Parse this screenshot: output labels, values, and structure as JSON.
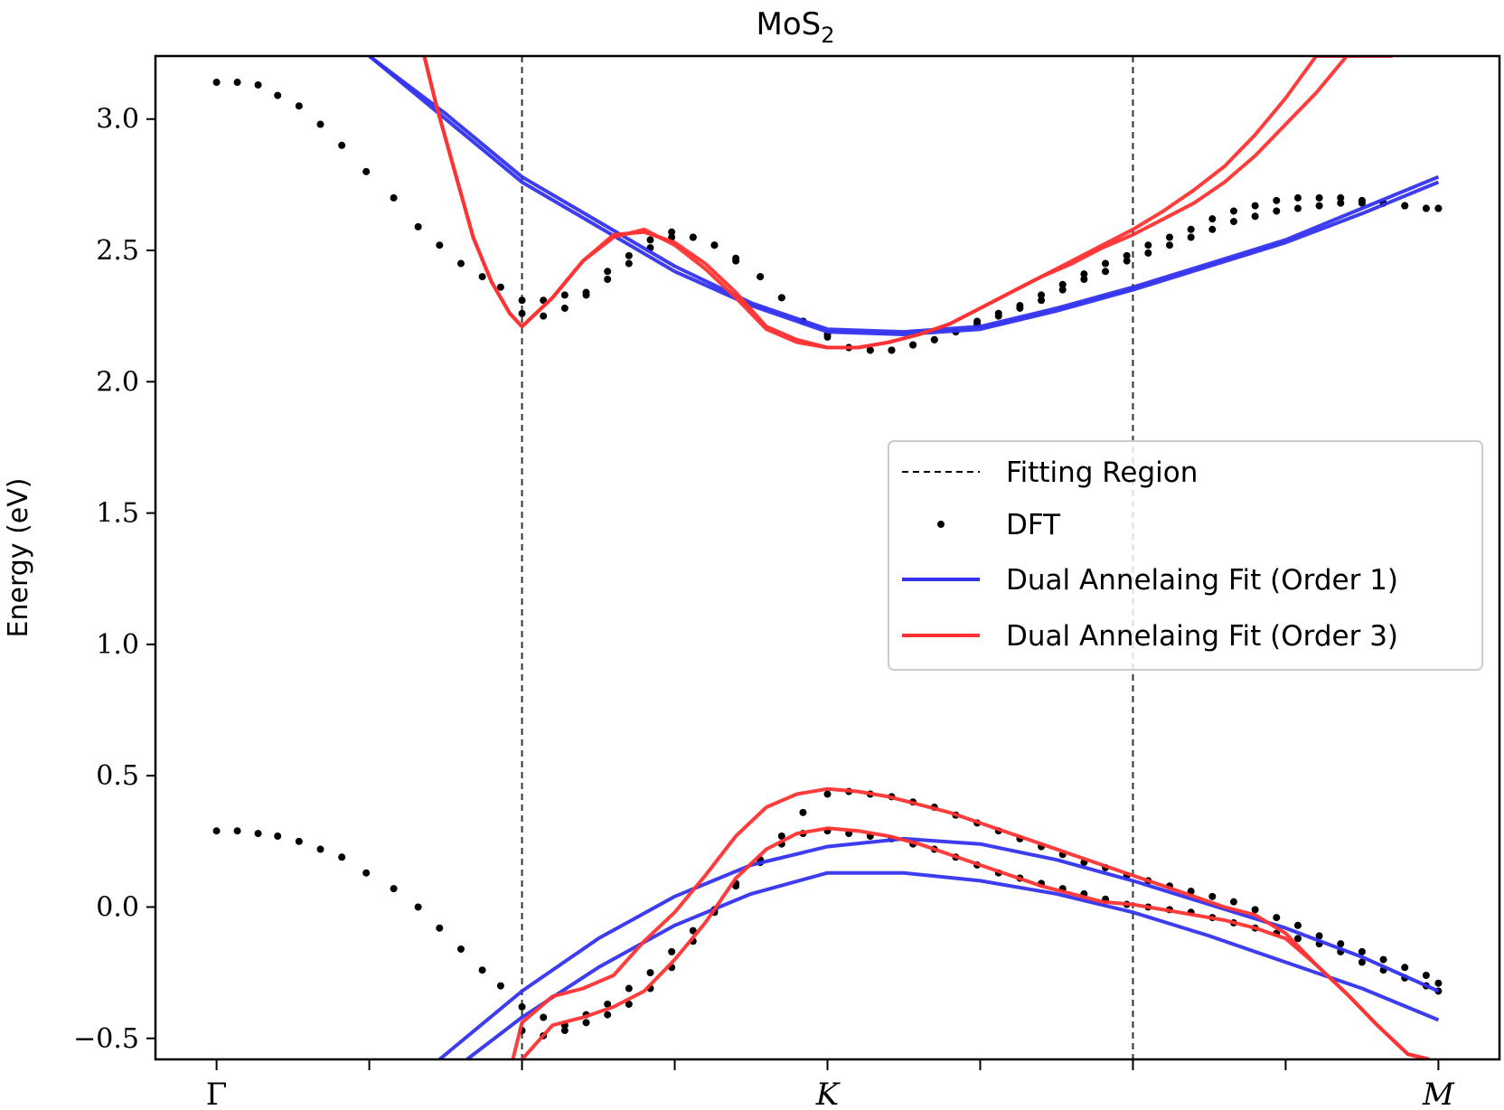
{
  "chart_data": {
    "type": "line",
    "title": "MoS",
    "title_subscript": "2",
    "xlabel": "",
    "ylabel": "Energy (eV)",
    "ylim": [
      -0.58,
      3.24
    ],
    "y_ticks": [
      -0.5,
      0.0,
      0.5,
      1.0,
      1.5,
      2.0,
      2.5,
      3.0
    ],
    "y_tick_labels": [
      "−0.5",
      "0.0",
      "0.5",
      "1.0",
      "1.5",
      "2.0",
      "2.5",
      "3.0"
    ],
    "x_ticks": [
      {
        "pos": 0.0,
        "label": "Γ",
        "italic": false
      },
      {
        "pos": 0.5,
        "label": "",
        "italic": false
      },
      {
        "pos": 1.0,
        "label": "",
        "italic": false
      },
      {
        "pos": 1.5,
        "label": "",
        "italic": false
      },
      {
        "pos": 2.0,
        "label": "K",
        "italic": true
      },
      {
        "pos": 2.5,
        "label": "",
        "italic": false
      },
      {
        "pos": 3.0,
        "label": "",
        "italic": false
      },
      {
        "pos": 3.5,
        "label": "",
        "italic": false
      },
      {
        "pos": 4.0,
        "label": "M",
        "italic": true
      }
    ],
    "xlim": [
      -0.2,
      4.2
    ],
    "fitting_region": [
      1.0,
      3.0
    ],
    "legend": {
      "placement": "center-right",
      "entries": [
        {
          "label": "Fitting Region",
          "style": "dashed",
          "color": "#000000"
        },
        {
          "label": "DFT",
          "style": "dot",
          "color": "#000000"
        },
        {
          "label": "Dual Annelaing Fit (Order 1)",
          "style": "line",
          "color": "#3333ee"
        },
        {
          "label": "Dual Annelaing Fit (Order 3)",
          "style": "line",
          "color": "#ff3333"
        }
      ]
    },
    "colors": {
      "dft": "#000000",
      "order1": "#3333ee",
      "order3": "#ff3333",
      "fitting": "#333333"
    },
    "series": [
      {
        "name": "DFT",
        "kind": "dots",
        "x": [
          0.0,
          0.068,
          0.136,
          0.2,
          0.27,
          0.34,
          0.41,
          0.49,
          0.58,
          0.66,
          0.73,
          0.8,
          0.87,
          0.93,
          1.0,
          1.07,
          1.14,
          1.21,
          1.28,
          1.35,
          1.42,
          1.49,
          1.56,
          1.63,
          1.7,
          1.78,
          1.85,
          1.92,
          2.0,
          2.07,
          2.14,
          2.21,
          2.28,
          2.35,
          2.42,
          2.49,
          2.56,
          2.63,
          2.7,
          2.77,
          2.84,
          2.91,
          2.98,
          3.05,
          3.12,
          3.19,
          3.26,
          3.33,
          3.4,
          3.47,
          3.54,
          3.61,
          3.68,
          3.75,
          3.82,
          3.89,
          3.96,
          4.0
        ],
        "y": [
          3.14,
          3.14,
          3.13,
          3.09,
          3.05,
          2.98,
          2.9,
          2.8,
          2.7,
          2.59,
          2.52,
          2.45,
          2.4,
          2.36,
          2.31,
          2.31,
          2.33,
          2.34,
          2.42,
          2.48,
          2.54,
          2.57,
          2.55,
          2.52,
          2.46,
          2.4,
          2.32,
          2.23,
          2.18,
          2.13,
          2.12,
          2.12,
          2.14,
          2.16,
          2.19,
          2.23,
          2.26,
          2.29,
          2.33,
          2.37,
          2.41,
          2.45,
          2.48,
          2.52,
          2.55,
          2.58,
          2.62,
          2.65,
          2.67,
          2.69,
          2.7,
          2.7,
          2.7,
          2.69,
          2.68,
          2.67,
          2.66,
          2.66
        ]
      },
      {
        "name": "DFT",
        "kind": "dots",
        "x": [
          1.0,
          1.07,
          1.14,
          1.21,
          1.28,
          1.35,
          1.42,
          1.49,
          1.56,
          1.63,
          1.7,
          1.78,
          1.85,
          1.92,
          2.0,
          2.07,
          2.14,
          2.21,
          2.28,
          2.35,
          2.42,
          2.49,
          2.56,
          2.63,
          2.7,
          2.77,
          2.84,
          2.91,
          2.98,
          3.05,
          3.12,
          3.19,
          3.26,
          3.33,
          3.4,
          3.47,
          3.54,
          3.61,
          3.68,
          3.75,
          3.82,
          3.89,
          3.96,
          4.0
        ],
        "y": [
          2.26,
          2.25,
          2.28,
          2.33,
          2.39,
          2.45,
          2.51,
          2.55,
          2.55,
          2.52,
          2.47,
          2.4,
          2.32,
          2.23,
          2.17,
          2.13,
          2.12,
          2.12,
          2.14,
          2.16,
          2.19,
          2.22,
          2.25,
          2.28,
          2.31,
          2.35,
          2.39,
          2.42,
          2.46,
          2.49,
          2.52,
          2.55,
          2.58,
          2.61,
          2.63,
          2.65,
          2.66,
          2.67,
          2.68,
          2.68,
          2.68,
          2.67,
          2.66,
          2.66
        ]
      },
      {
        "name": "DFT",
        "kind": "dots",
        "x": [
          0.0,
          0.068,
          0.136,
          0.2,
          0.27,
          0.34,
          0.41,
          0.49,
          0.58,
          0.66,
          0.73,
          0.8,
          0.87,
          0.93,
          1.0,
          1.07,
          1.14,
          1.21,
          1.28,
          1.35,
          1.42,
          1.49,
          1.56,
          1.63,
          1.7,
          1.78,
          1.85,
          1.92,
          2.0,
          2.07,
          2.14,
          2.21,
          2.28,
          2.35,
          2.42,
          2.49,
          2.56,
          2.63,
          2.7,
          2.77,
          2.84,
          2.91,
          2.98,
          3.05,
          3.12,
          3.19,
          3.26,
          3.33,
          3.4,
          3.47,
          3.54,
          3.61,
          3.68,
          3.75,
          3.82,
          3.89,
          3.96,
          4.0
        ],
        "y": [
          0.29,
          0.29,
          0.28,
          0.27,
          0.25,
          0.22,
          0.19,
          0.13,
          0.07,
          0.0,
          -0.08,
          -0.16,
          -0.24,
          -0.3,
          -0.38,
          -0.42,
          -0.45,
          -0.41,
          -0.37,
          -0.31,
          -0.25,
          -0.17,
          -0.09,
          -0.01,
          0.08,
          0.17,
          0.27,
          0.36,
          0.43,
          0.44,
          0.43,
          0.42,
          0.4,
          0.38,
          0.35,
          0.32,
          0.29,
          0.26,
          0.23,
          0.2,
          0.17,
          0.15,
          0.12,
          0.1,
          0.08,
          0.06,
          0.04,
          0.02,
          -0.01,
          -0.04,
          -0.07,
          -0.11,
          -0.14,
          -0.17,
          -0.2,
          -0.23,
          -0.26,
          -0.29
        ]
      },
      {
        "name": "DFT",
        "kind": "dots",
        "x": [
          1.0,
          1.07,
          1.14,
          1.21,
          1.28,
          1.35,
          1.42,
          1.49,
          1.56,
          1.63,
          1.7,
          1.78,
          1.85,
          1.92,
          2.0,
          2.07,
          2.14,
          2.21,
          2.28,
          2.35,
          2.42,
          2.49,
          2.56,
          2.63,
          2.7,
          2.77,
          2.84,
          2.91,
          2.98,
          3.05,
          3.12,
          3.19,
          3.26,
          3.33,
          3.4,
          3.47,
          3.54,
          3.61,
          3.68,
          3.75,
          3.82,
          3.89,
          3.96,
          4.0
        ],
        "y": [
          -0.47,
          -0.49,
          -0.47,
          -0.44,
          -0.41,
          -0.37,
          -0.31,
          -0.23,
          -0.13,
          -0.02,
          0.09,
          0.18,
          0.24,
          0.28,
          0.29,
          0.28,
          0.27,
          0.26,
          0.24,
          0.22,
          0.19,
          0.16,
          0.13,
          0.11,
          0.09,
          0.07,
          0.05,
          0.03,
          0.01,
          0.0,
          -0.01,
          -0.02,
          -0.04,
          -0.06,
          -0.08,
          -0.1,
          -0.12,
          -0.14,
          -0.17,
          -0.21,
          -0.24,
          -0.27,
          -0.3,
          -0.32
        ]
      },
      {
        "name": "Dual Annelaing Fit (Order 1)",
        "kind": "line",
        "x": [
          0.5,
          0.75,
          1.0,
          1.25,
          1.5,
          1.75,
          2.0,
          2.25,
          2.5,
          2.75,
          3.0,
          3.25,
          3.5,
          3.75,
          4.0
        ],
        "y": [
          3.24,
          3.02,
          2.78,
          2.61,
          2.44,
          2.3,
          2.2,
          2.19,
          2.21,
          2.28,
          2.36,
          2.45,
          2.54,
          2.66,
          2.78
        ]
      },
      {
        "name": "Dual Annelaing Fit (Order 1)",
        "kind": "line",
        "x": [
          0.5,
          0.75,
          1.0,
          1.25,
          1.5,
          1.75,
          2.0,
          2.25,
          2.5,
          2.75,
          3.0,
          3.25,
          3.5,
          3.75,
          4.0
        ],
        "y": [
          3.24,
          3.0,
          2.76,
          2.59,
          2.42,
          2.29,
          2.19,
          2.18,
          2.2,
          2.27,
          2.35,
          2.44,
          2.53,
          2.64,
          2.76
        ]
      },
      {
        "name": "Dual Annelaing Fit (Order 3)",
        "kind": "line",
        "x": [
          0.68,
          0.72,
          0.78,
          0.84,
          0.9,
          0.96,
          1.0,
          1.1,
          1.2,
          1.3,
          1.4,
          1.5,
          1.6,
          1.7,
          1.8,
          1.9,
          2.0,
          2.1,
          2.2,
          2.3,
          2.4,
          2.5,
          2.6,
          2.7,
          2.8,
          2.9,
          3.0,
          3.1,
          3.2,
          3.3,
          3.4,
          3.5,
          3.6,
          3.7,
          3.8,
          3.85
        ],
        "y": [
          3.24,
          3.05,
          2.8,
          2.55,
          2.38,
          2.26,
          2.21,
          2.32,
          2.46,
          2.56,
          2.57,
          2.53,
          2.45,
          2.34,
          2.21,
          2.16,
          2.13,
          2.13,
          2.15,
          2.18,
          2.22,
          2.28,
          2.34,
          2.4,
          2.45,
          2.51,
          2.56,
          2.62,
          2.68,
          2.76,
          2.86,
          2.98,
          3.1,
          3.24,
          3.24,
          3.24
        ]
      },
      {
        "name": "Dual Annelaing Fit (Order 3)",
        "kind": "line",
        "x": [
          0.68,
          0.72,
          0.78,
          0.84,
          0.9,
          0.96,
          1.0,
          1.1,
          1.2,
          1.3,
          1.4,
          1.5,
          1.6,
          1.7,
          1.8,
          1.9,
          2.0,
          2.1,
          2.2,
          2.3,
          2.4,
          2.5,
          2.6,
          2.7,
          2.8,
          2.9,
          3.0,
          3.1,
          3.2,
          3.3,
          3.4,
          3.5,
          3.6,
          3.7,
          3.75
        ],
        "y": [
          3.24,
          3.05,
          2.8,
          2.55,
          2.38,
          2.26,
          2.21,
          2.32,
          2.46,
          2.55,
          2.58,
          2.52,
          2.43,
          2.32,
          2.2,
          2.15,
          2.13,
          2.13,
          2.15,
          2.18,
          2.22,
          2.28,
          2.34,
          2.4,
          2.46,
          2.52,
          2.58,
          2.65,
          2.73,
          2.82,
          2.94,
          3.08,
          3.24,
          3.24,
          3.24
        ]
      },
      {
        "name": "Dual Annelaing Fit (Order 1)",
        "kind": "line",
        "x": [
          0.73,
          1.0,
          1.25,
          1.5,
          1.75,
          2.0,
          2.25,
          2.5,
          2.75,
          3.0,
          3.25,
          3.5,
          3.75,
          4.0
        ],
        "y": [
          -0.58,
          -0.32,
          -0.12,
          0.04,
          0.16,
          0.23,
          0.26,
          0.24,
          0.18,
          0.1,
          0.01,
          -0.08,
          -0.19,
          -0.32
        ]
      },
      {
        "name": "Dual Annelaing Fit (Order 1)",
        "kind": "line",
        "x": [
          0.82,
          1.0,
          1.25,
          1.5,
          1.75,
          2.0,
          2.25,
          2.5,
          2.75,
          3.0,
          3.25,
          3.5,
          3.75,
          4.0
        ],
        "y": [
          -0.58,
          -0.42,
          -0.23,
          -0.07,
          0.05,
          0.13,
          0.13,
          0.1,
          0.05,
          -0.02,
          -0.11,
          -0.21,
          -0.31,
          -0.43
        ]
      },
      {
        "name": "Dual Annelaing Fit (Order 3)",
        "kind": "line",
        "x": [
          0.97,
          1.0,
          1.1,
          1.2,
          1.3,
          1.4,
          1.5,
          1.6,
          1.7,
          1.8,
          1.9,
          2.0,
          2.1,
          2.2,
          2.3,
          2.4,
          2.5,
          2.6,
          2.7,
          2.8,
          2.9,
          3.0,
          3.1,
          3.2,
          3.3,
          3.4,
          3.5,
          3.6,
          3.7,
          3.8,
          3.9,
          3.97
        ],
        "y": [
          -0.58,
          -0.44,
          -0.34,
          -0.31,
          -0.26,
          -0.13,
          -0.02,
          0.12,
          0.27,
          0.38,
          0.43,
          0.45,
          0.44,
          0.42,
          0.39,
          0.36,
          0.32,
          0.28,
          0.24,
          0.2,
          0.16,
          0.12,
          0.08,
          0.04,
          0.0,
          -0.03,
          -0.1,
          -0.22,
          -0.33,
          -0.45,
          -0.56,
          -0.58
        ]
      },
      {
        "name": "Dual Annelaing Fit (Order 3)",
        "kind": "line",
        "x": [
          1.0,
          1.1,
          1.2,
          1.3,
          1.4,
          1.5,
          1.6,
          1.7,
          1.8,
          1.9,
          2.0,
          2.1,
          2.2,
          2.3,
          2.4,
          2.5,
          2.6,
          2.7,
          2.8,
          2.9,
          3.0,
          3.1,
          3.2,
          3.3,
          3.4,
          3.5,
          3.6,
          3.7,
          3.8,
          3.9,
          3.97
        ],
        "y": [
          -0.58,
          -0.45,
          -0.42,
          -0.38,
          -0.32,
          -0.2,
          -0.06,
          0.11,
          0.22,
          0.28,
          0.3,
          0.29,
          0.27,
          0.24,
          0.2,
          0.16,
          0.12,
          0.08,
          0.05,
          0.02,
          0.01,
          -0.01,
          -0.03,
          -0.05,
          -0.08,
          -0.12,
          -0.22,
          -0.33,
          -0.45,
          -0.56,
          -0.58
        ]
      }
    ]
  }
}
